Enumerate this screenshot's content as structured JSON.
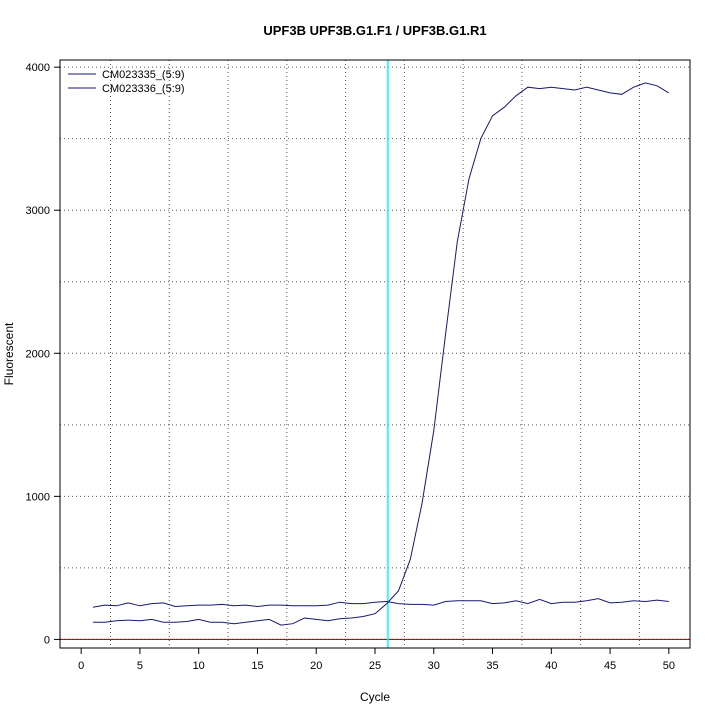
{
  "chart_data": {
    "type": "line",
    "title": "UPF3B  UPF3B.G1.F1 / UPF3B.G1.R1",
    "xlabel": "Cycle",
    "ylabel": "Fluorescent",
    "xlim": [
      -1.8,
      51.8
    ],
    "ylim": [
      -60,
      4050
    ],
    "x_ticks": [
      0,
      5,
      10,
      15,
      20,
      25,
      30,
      35,
      40,
      45,
      50
    ],
    "y_ticks": [
      0,
      1000,
      2000,
      3000,
      4000
    ],
    "grid": true,
    "legend_position": "top-left",
    "threshold_x": 26.1,
    "baseline_y": 0,
    "colors": {
      "series": "#191970",
      "threshold": "#00ffff",
      "baseline": "#8b0000",
      "grid": "#555555"
    },
    "series": [
      {
        "name": "CM023335_(5:9)",
        "x": [
          1,
          2,
          3,
          4,
          5,
          6,
          7,
          8,
          9,
          10,
          11,
          12,
          13,
          14,
          15,
          16,
          17,
          18,
          19,
          20,
          21,
          22,
          23,
          24,
          25,
          26,
          27,
          28,
          29,
          30,
          31,
          32,
          33,
          34,
          35,
          36,
          37,
          38,
          39,
          40,
          41,
          42,
          43,
          44,
          45,
          46,
          47,
          48,
          49,
          50
        ],
        "values": [
          225,
          240,
          235,
          255,
          235,
          250,
          255,
          230,
          235,
          240,
          240,
          245,
          235,
          240,
          230,
          240,
          240,
          235,
          235,
          235,
          240,
          260,
          250,
          250,
          260,
          265,
          250,
          245,
          245,
          240,
          265,
          270,
          270,
          270,
          250,
          255,
          270,
          250,
          280,
          250,
          260,
          260,
          270,
          285,
          255,
          260,
          270,
          265,
          275,
          265
        ]
      },
      {
        "name": "CM023336_(5:9)",
        "x": [
          1,
          2,
          3,
          4,
          5,
          6,
          7,
          8,
          9,
          10,
          11,
          12,
          13,
          14,
          15,
          16,
          17,
          18,
          19,
          20,
          21,
          22,
          23,
          24,
          25,
          26,
          27,
          28,
          29,
          30,
          31,
          32,
          33,
          34,
          35,
          36,
          37,
          38,
          39,
          40,
          41,
          42,
          43,
          44,
          45,
          46,
          47,
          48,
          49,
          50
        ],
        "values": [
          120,
          120,
          130,
          135,
          130,
          140,
          120,
          120,
          125,
          140,
          120,
          120,
          110,
          120,
          130,
          140,
          100,
          110,
          150,
          140,
          130,
          145,
          150,
          160,
          180,
          250,
          340,
          560,
          950,
          1460,
          2130,
          2780,
          3220,
          3500,
          3660,
          3720,
          3800,
          3860,
          3850,
          3860,
          3850,
          3840,
          3860,
          3840,
          3820,
          3810,
          3860,
          3890,
          3870,
          3820
        ]
      }
    ]
  }
}
